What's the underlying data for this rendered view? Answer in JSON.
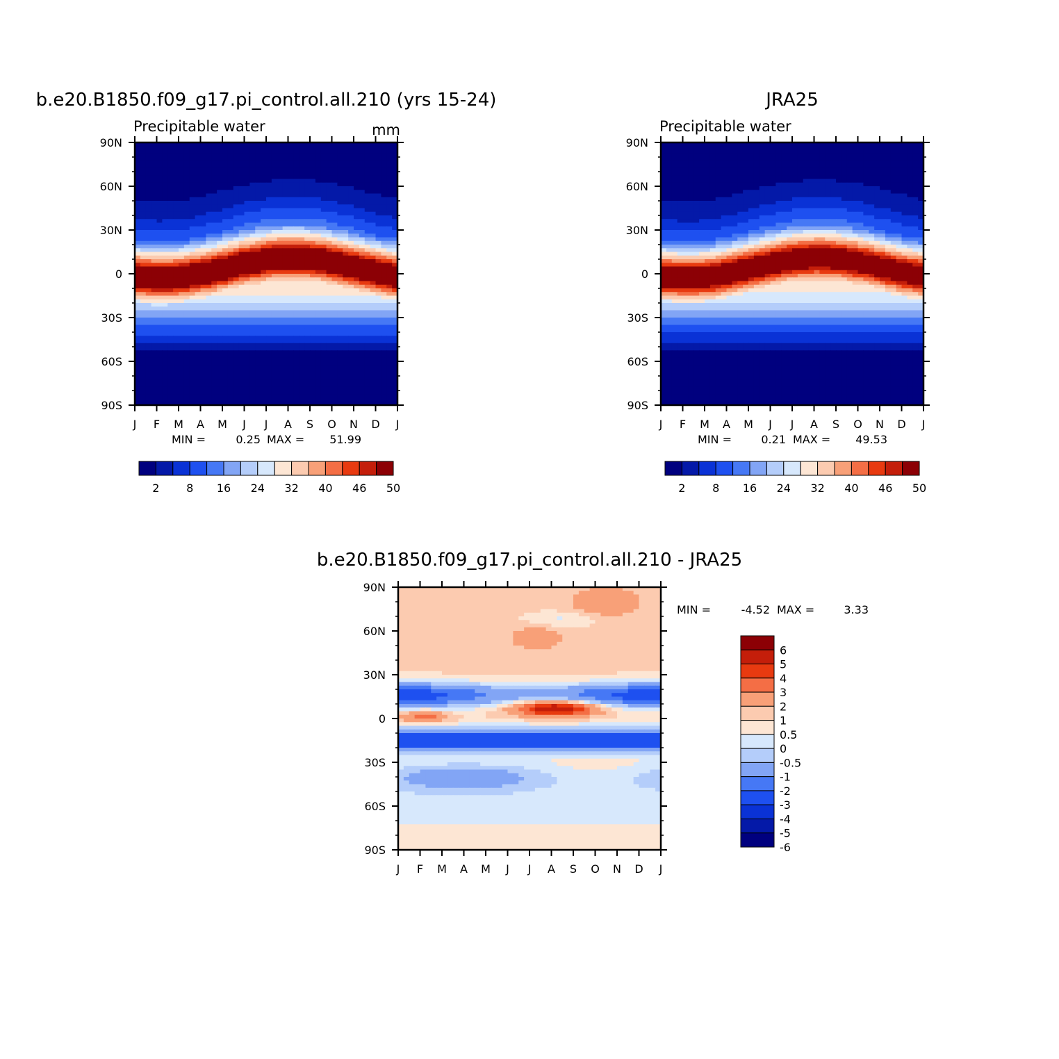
{
  "colors": {
    "abs_scale": [
      "#00007f",
      "#0419a8",
      "#0a32d6",
      "#1e50f0",
      "#4678f5",
      "#82a5f5",
      "#b4cdfa",
      "#d7e8fc",
      "#fde6d4",
      "#fccbb0",
      "#f8a078",
      "#f46e45",
      "#e83a10",
      "#c41e0a",
      "#8c0005"
    ],
    "diff_scale": [
      "#00007f",
      "#0419a8",
      "#0a32d6",
      "#1e50f0",
      "#4678f5",
      "#82a5f5",
      "#b4cdfa",
      "#d7e8fc",
      "#fde6d4",
      "#fccbb0",
      "#f8a078",
      "#f46e45",
      "#e83a10",
      "#c41e0a",
      "#8c0005"
    ]
  },
  "chart_data": [
    {
      "type": "heatmap",
      "title": "b.e20.B1850.f09_g17.pi_control.all.210 (yrs 15-24)",
      "subtitle": "Precipitable water",
      "units": "mm",
      "x_ticks": [
        "J",
        "F",
        "M",
        "A",
        "M",
        "J",
        "J",
        "A",
        "S",
        "O",
        "N",
        "D",
        "J"
      ],
      "y_ticks": [
        "90N",
        "60N",
        "30N",
        "0",
        "30S",
        "60S",
        "90S"
      ],
      "min_label": "MIN =",
      "min_value": "0.25",
      "max_label": "MAX =",
      "max_value": "51.99",
      "levels": [
        "2",
        "8",
        "16",
        "24",
        "32",
        "40",
        "46",
        "50"
      ],
      "fill_range": [
        0,
        52
      ]
    },
    {
      "type": "heatmap",
      "title": "JRA25",
      "subtitle": "Precipitable water",
      "x_ticks": [
        "J",
        "F",
        "M",
        "A",
        "M",
        "J",
        "J",
        "A",
        "S",
        "O",
        "N",
        "D",
        "J"
      ],
      "y_ticks": [
        "90N",
        "60N",
        "30N",
        "0",
        "30S",
        "60S",
        "90S"
      ],
      "min_label": "MIN =",
      "min_value": "0.21",
      "max_label": "MAX =",
      "max_value": "49.53",
      "levels": [
        "2",
        "8",
        "16",
        "24",
        "32",
        "40",
        "46",
        "50"
      ],
      "fill_range": [
        0,
        50
      ]
    },
    {
      "type": "heatmap",
      "title": "b.e20.B1850.f09_g17.pi_control.all.210 - JRA25",
      "x_ticks": [
        "J",
        "F",
        "M",
        "A",
        "M",
        "J",
        "J",
        "A",
        "S",
        "O",
        "N",
        "D",
        "J"
      ],
      "y_ticks": [
        "90N",
        "60N",
        "30N",
        "0",
        "30S",
        "60S",
        "90S"
      ],
      "min_label": "MIN =",
      "min_value": "-4.52",
      "max_label": "MAX =",
      "max_value": "3.33",
      "levels": [
        "6",
        "5",
        "4",
        "3",
        "2",
        "1",
        "0.5",
        "0",
        "-0.5",
        "-1",
        "-2",
        "-3",
        "-4",
        "-5",
        "-6"
      ],
      "fill_range": [
        -4.52,
        3.33
      ]
    }
  ]
}
